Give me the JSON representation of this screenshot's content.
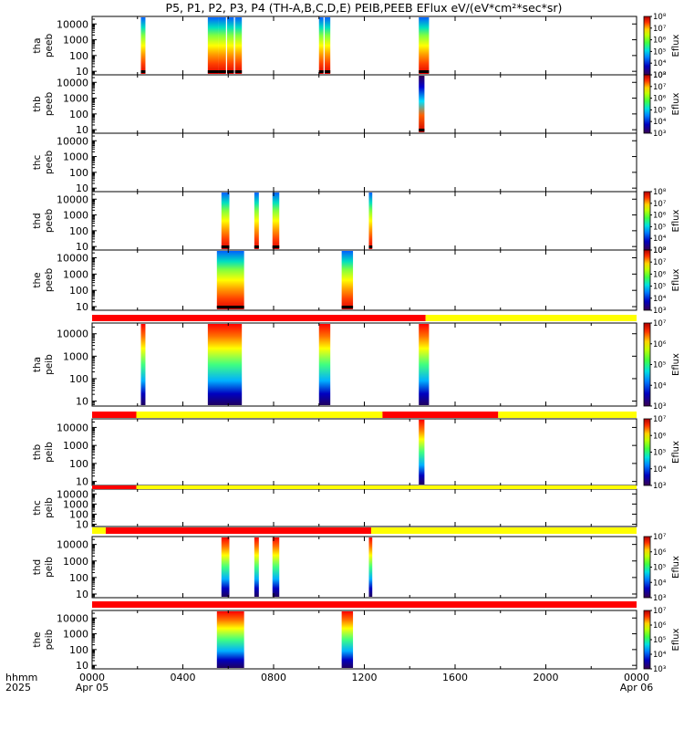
{
  "title": "P5, P1, P2, P3, P4 (TH-A,B,C,D,E) PEIB,PEEB EFlux eV/(eV*cm²*sec*sr)",
  "footer": {
    "time_label": "hhmm",
    "year_label": "2025",
    "start_date": "Apr 05",
    "end_date": "Apr 06"
  },
  "x_ticks": [
    "0000",
    "0400",
    "0800",
    "1200",
    "1600",
    "2000",
    "0000"
  ],
  "colors": {
    "mode_fast": "#ff0000",
    "mode_slow": "#ffff00",
    "colormap": [
      "#2c0032",
      "#000090",
      "#0040ff",
      "#00c0ff",
      "#00ff80",
      "#80ff00",
      "#ffff00",
      "#ff8000",
      "#ff0000",
      "#a00000"
    ]
  },
  "chart_data": [
    {
      "type": "heatmap",
      "probe": "tha",
      "product": "peeb",
      "ylabel_line1": "tha",
      "ylabel_line2": "peeb",
      "ylim": [
        6,
        30000
      ],
      "yscale": "log",
      "y_ticks": [
        "10",
        "100",
        "1000",
        "10000"
      ],
      "colorbar": {
        "label": "Eflux",
        "ticks": [
          "10³",
          "10⁴",
          "10⁵",
          "10⁶",
          "10⁷",
          "10⁸"
        ],
        "range": [
          1000,
          100000000
        ]
      },
      "x_range_hours": [
        0,
        24
      ],
      "data_intervals_hours": [
        [
          2.15,
          2.35
        ],
        [
          5.1,
          5.55
        ],
        [
          5.55,
          5.9
        ],
        [
          5.95,
          6.25
        ],
        [
          6.3,
          6.6
        ],
        [
          10.0,
          10.2
        ],
        [
          10.25,
          10.5
        ],
        [
          14.4,
          14.85
        ]
      ],
      "mode_bar": null
    },
    {
      "type": "heatmap",
      "probe": "thb",
      "product": "peeb",
      "ylabel_line1": "thb",
      "ylabel_line2": "peeb",
      "ylim": [
        6,
        30000
      ],
      "yscale": "log",
      "y_ticks": [
        "10",
        "100",
        "1000",
        "10000"
      ],
      "colorbar": {
        "label": "Eflux",
        "ticks": [
          "10³",
          "10⁴",
          "10⁵",
          "10⁶",
          "10⁷",
          "10⁸"
        ],
        "range": [
          1000,
          100000000
        ]
      },
      "x_range_hours": [
        0,
        24
      ],
      "data_intervals_hours": [
        [
          14.4,
          14.65
        ]
      ],
      "mode_bar": null
    },
    {
      "type": "heatmap",
      "probe": "thc",
      "product": "peeb",
      "ylabel_line1": "thc",
      "ylabel_line2": "peeb",
      "ylim": [
        6,
        30000
      ],
      "yscale": "log",
      "y_ticks": [
        "10",
        "100",
        "1000",
        "10000"
      ],
      "colorbar": null,
      "x_range_hours": [
        0,
        24
      ],
      "data_intervals_hours": [],
      "mode_bar": null
    },
    {
      "type": "heatmap",
      "probe": "thd",
      "product": "peeb",
      "ylabel_line1": "thd",
      "ylabel_line2": "peeb",
      "ylim": [
        6,
        30000
      ],
      "yscale": "log",
      "y_ticks": [
        "10",
        "100",
        "1000",
        "10000"
      ],
      "colorbar": {
        "label": "Eflux",
        "ticks": [
          "10³",
          "10⁴",
          "10⁵",
          "10⁶",
          "10⁷",
          "10⁸"
        ],
        "range": [
          1000,
          100000000
        ]
      },
      "x_range_hours": [
        0,
        24
      ],
      "data_intervals_hours": [
        [
          5.7,
          6.05
        ],
        [
          7.15,
          7.35
        ],
        [
          7.95,
          8.25
        ],
        [
          12.2,
          12.35
        ]
      ],
      "mode_bar": null
    },
    {
      "type": "heatmap",
      "probe": "the",
      "product": "peeb",
      "ylabel_line1": "the",
      "ylabel_line2": "peeb",
      "ylim": [
        6,
        30000
      ],
      "yscale": "log",
      "y_ticks": [
        "10",
        "100",
        "1000",
        "10000"
      ],
      "colorbar": {
        "label": "Eflux",
        "ticks": [
          "10³",
          "10⁴",
          "10⁵",
          "10⁶",
          "10⁷",
          "10⁸"
        ],
        "range": [
          1000,
          100000000
        ]
      },
      "x_range_hours": [
        0,
        24
      ],
      "data_intervals_hours": [
        [
          5.5,
          6.7
        ],
        [
          11.0,
          11.5
        ]
      ],
      "mode_bar": null
    },
    {
      "type": "heatmap",
      "probe": "tha",
      "product": "peib",
      "ylabel_line1": "tha",
      "ylabel_line2": "peib",
      "ylim": [
        6,
        30000
      ],
      "yscale": "log",
      "y_ticks": [
        "10",
        "100",
        "1000",
        "10000"
      ],
      "colorbar": {
        "label": "Eflux",
        "ticks": [
          "10³",
          "10⁴",
          "10⁵",
          "10⁶",
          "10⁷"
        ],
        "range": [
          1000,
          10000000
        ]
      },
      "x_range_hours": [
        0,
        24
      ],
      "data_intervals_hours": [
        [
          2.15,
          2.35
        ],
        [
          5.1,
          6.6
        ],
        [
          10.0,
          10.5
        ],
        [
          14.4,
          14.85
        ]
      ],
      "mode_bar": [
        {
          "start_hours": 0,
          "end_hours": 14.7,
          "mode": "fast"
        },
        {
          "start_hours": 14.7,
          "end_hours": 24,
          "mode": "slow"
        }
      ]
    },
    {
      "type": "heatmap",
      "probe": "thb",
      "product": "peib",
      "ylabel_line1": "thb",
      "ylabel_line2": "peib",
      "ylim": [
        6,
        30000
      ],
      "yscale": "log",
      "y_ticks": [
        "10",
        "100",
        "1000",
        "10000"
      ],
      "colorbar": {
        "label": "Eflux",
        "ticks": [
          "10³",
          "10⁴",
          "10⁵",
          "10⁶",
          "10⁷"
        ],
        "range": [
          1000,
          10000000
        ]
      },
      "x_range_hours": [
        0,
        24
      ],
      "data_intervals_hours": [
        [
          14.4,
          14.65
        ]
      ],
      "mode_bar": [
        {
          "start_hours": 0,
          "end_hours": 1.95,
          "mode": "fast"
        },
        {
          "start_hours": 1.95,
          "end_hours": 12.8,
          "mode": "slow"
        },
        {
          "start_hours": 12.8,
          "end_hours": 17.9,
          "mode": "fast"
        },
        {
          "start_hours": 17.9,
          "end_hours": 24,
          "mode": "slow"
        }
      ]
    },
    {
      "type": "heatmap",
      "probe": "thc",
      "product": "peib",
      "ylabel_line1": "thc",
      "ylabel_line2": "peib",
      "ylim": [
        6,
        30000
      ],
      "yscale": "log",
      "y_ticks": [
        "10",
        "100",
        "1000",
        "10000"
      ],
      "colorbar": null,
      "x_range_hours": [
        0,
        24
      ],
      "data_intervals_hours": [],
      "mode_bar": [
        {
          "start_hours": 0,
          "end_hours": 1.95,
          "mode": "fast"
        },
        {
          "start_hours": 1.95,
          "end_hours": 24,
          "mode": "slow"
        }
      ]
    },
    {
      "type": "heatmap",
      "probe": "thd",
      "product": "peib",
      "ylabel_line1": "thd",
      "ylabel_line2": "peib",
      "ylim": [
        6,
        30000
      ],
      "yscale": "log",
      "y_ticks": [
        "10",
        "100",
        "1000",
        "10000"
      ],
      "colorbar": {
        "label": "Eflux",
        "ticks": [
          "10³",
          "10⁴",
          "10⁵",
          "10⁶",
          "10⁷"
        ],
        "range": [
          1000,
          10000000
        ]
      },
      "x_range_hours": [
        0,
        24
      ],
      "data_intervals_hours": [
        [
          5.7,
          6.05
        ],
        [
          7.15,
          7.35
        ],
        [
          7.95,
          8.25
        ],
        [
          12.2,
          12.35
        ]
      ],
      "mode_bar": [
        {
          "start_hours": 0,
          "end_hours": 0.6,
          "mode": "slow"
        },
        {
          "start_hours": 0.6,
          "end_hours": 12.3,
          "mode": "fast"
        },
        {
          "start_hours": 12.3,
          "end_hours": 24,
          "mode": "slow"
        }
      ]
    },
    {
      "type": "heatmap",
      "probe": "the",
      "product": "peib",
      "ylabel_line1": "the",
      "ylabel_line2": "peib",
      "ylim": [
        6,
        30000
      ],
      "yscale": "log",
      "y_ticks": [
        "10",
        "100",
        "1000",
        "10000"
      ],
      "colorbar": {
        "label": "Eflux",
        "ticks": [
          "10³",
          "10⁴",
          "10⁵",
          "10⁶",
          "10⁷"
        ],
        "range": [
          1000,
          10000000
        ]
      },
      "x_range_hours": [
        0,
        24
      ],
      "data_intervals_hours": [
        [
          5.5,
          6.7
        ],
        [
          11.0,
          11.5
        ]
      ],
      "mode_bar": [
        {
          "start_hours": 0,
          "end_hours": 24,
          "mode": "fast"
        }
      ]
    }
  ]
}
